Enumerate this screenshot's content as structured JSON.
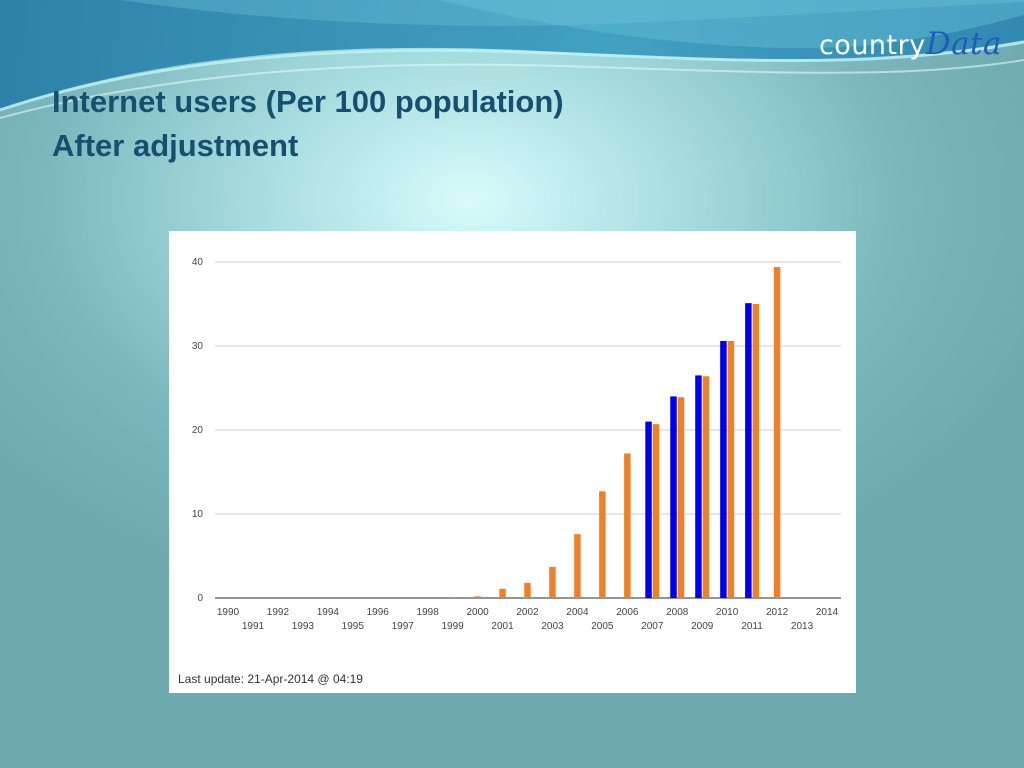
{
  "slide": {
    "title_line1": "Internet users (Per 100 population)",
    "title_line2": "After adjustment",
    "logo_part1": "country",
    "logo_part2": "Data",
    "last_update": "Last update: 21-Apr-2014 @ 04:19"
  },
  "colors": {
    "series_blue": "#0000ee",
    "series_orange": "#f07f2a",
    "title": "#17506e"
  },
  "chart_data": {
    "type": "bar",
    "x": [
      1990,
      1991,
      1992,
      1993,
      1994,
      1995,
      1996,
      1997,
      1998,
      1999,
      2000,
      2001,
      2002,
      2003,
      2004,
      2005,
      2006,
      2007,
      2008,
      2009,
      2010,
      2011,
      2012,
      2013,
      2014
    ],
    "x_tick_labels_top": [
      "1990",
      "1992",
      "1994",
      "1996",
      "1998",
      "2000",
      "2002",
      "2004",
      "2006",
      "2008",
      "2010",
      "2012",
      "2014"
    ],
    "x_tick_labels_bottom": [
      "1991",
      "1993",
      "1995",
      "1997",
      "1999",
      "2001",
      "2003",
      "2005",
      "2007",
      "2009",
      "2011",
      "2013"
    ],
    "series": [
      {
        "color": "#0000ee",
        "values": [
          null,
          null,
          null,
          null,
          null,
          null,
          null,
          null,
          null,
          null,
          null,
          null,
          null,
          null,
          null,
          null,
          null,
          21.0,
          24.0,
          26.5,
          30.6,
          35.1,
          null,
          null,
          null
        ]
      },
      {
        "color": "#f07f2a",
        "values": [
          0,
          0,
          0,
          0,
          0,
          0,
          0,
          0,
          0,
          0.1,
          0.2,
          1.1,
          1.8,
          3.7,
          7.6,
          12.7,
          17.2,
          20.7,
          23.9,
          26.4,
          30.6,
          35.0,
          39.4,
          null,
          null
        ]
      }
    ],
    "y_ticks": [
      "0",
      "10",
      "20",
      "30",
      "40"
    ],
    "ylim": [
      0,
      40
    ],
    "xlabel": "",
    "ylabel": "",
    "title": "",
    "grid": true,
    "legend": "none"
  }
}
